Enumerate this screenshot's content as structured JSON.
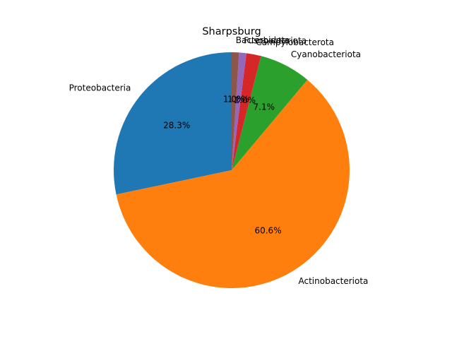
{
  "chart_data": {
    "type": "pie",
    "title": "Sharpsburg",
    "start_angle_deg": 90,
    "direction": "counterclockwise",
    "slices": [
      {
        "label": "Proteobacteria",
        "value": 28.3,
        "pct_label": "28.3%",
        "color": "#1f77b4"
      },
      {
        "label": "Actinobacteriota",
        "value": 60.6,
        "pct_label": "60.6%",
        "color": "#ff7f0e"
      },
      {
        "label": "Cyanobacteriota",
        "value": 7.1,
        "pct_label": "7.1%",
        "color": "#2ca02c"
      },
      {
        "label": "Campylobacterota",
        "value": 2.0,
        "pct_label": "2.0%",
        "color": "#d62728"
      },
      {
        "label": "Fusobacteriota",
        "value": 1.0,
        "pct_label": "1.0%",
        "color": "#9467bd"
      },
      {
        "label": "Bacteroidota",
        "value": 1.0,
        "pct_label": "1.0%",
        "color": "#8c564b"
      }
    ]
  }
}
